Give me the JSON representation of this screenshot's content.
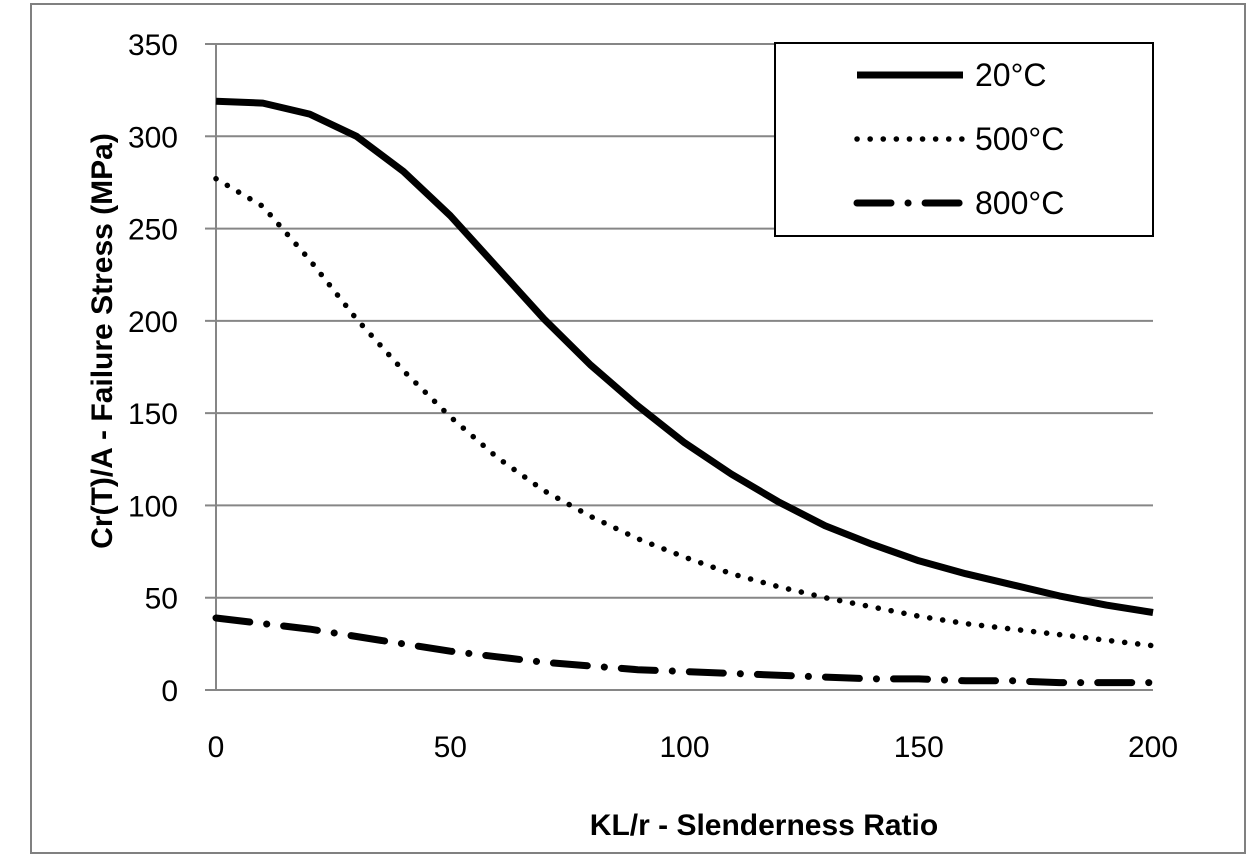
{
  "chart_data": {
    "type": "line",
    "xlabel": "KL/r - Slenderness Ratio",
    "ylabel": "Cr(T)/A - Failure Stress (MPa)",
    "xlim": [
      0,
      200
    ],
    "ylim": [
      0,
      350
    ],
    "x_ticks": [
      0,
      50,
      100,
      150,
      200
    ],
    "y_ticks": [
      0,
      50,
      100,
      150,
      200,
      250,
      300,
      350
    ],
    "grid": "horizontal",
    "legend_position": "top-right",
    "x": [
      0,
      10,
      20,
      30,
      40,
      50,
      60,
      70,
      80,
      90,
      100,
      110,
      120,
      130,
      140,
      150,
      160,
      170,
      180,
      190,
      200
    ],
    "series": [
      {
        "name": "20°C",
        "style": "solid",
        "values": [
          319,
          318,
          312,
          300,
          281,
          257,
          229,
          201,
          176,
          154,
          134,
          117,
          102,
          89,
          79,
          70,
          63,
          57,
          51,
          46,
          42
        ]
      },
      {
        "name": "500°C",
        "style": "dotted",
        "values": [
          277,
          262,
          233,
          201,
          173,
          148,
          126,
          108,
          94,
          82,
          72,
          63,
          56,
          50,
          45,
          40,
          36,
          33,
          30,
          27,
          24
        ]
      },
      {
        "name": "800°C",
        "style": "dash-dot",
        "values": [
          39,
          36,
          33,
          29,
          25,
          21,
          18,
          15,
          13,
          11,
          10,
          9,
          8,
          7,
          6,
          6,
          5,
          5,
          4,
          4,
          4
        ]
      }
    ]
  }
}
